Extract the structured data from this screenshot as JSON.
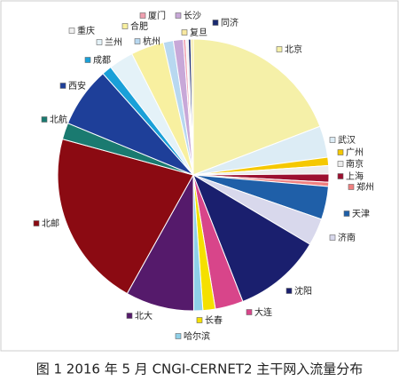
{
  "chart_data": {
    "type": "pie",
    "title": "图 1 2016 年 5 月 CNGI-CERNET2 主干网入流量分布",
    "categories": [
      "北京",
      "武汉",
      "广州",
      "南京",
      "上海",
      "郑州",
      "天津",
      "济南",
      "沈阳",
      "大连",
      "长春",
      "哈尔滨",
      "北大",
      "北邮",
      "北航",
      "西安",
      "成都",
      "兰州",
      "合肥",
      "杭州",
      "长沙",
      "厦门",
      "重庆",
      "同济",
      "复旦"
    ],
    "values": [
      19.5,
      3.8,
      1,
      1,
      1,
      0.5,
      4,
      3.3,
      10.7,
      3.4,
      1.5,
      1.1,
      8.3,
      21.5,
      2,
      7.3,
      1.2,
      3,
      4,
      1.2,
      1.2,
      0.3,
      0.3,
      0.3,
      0.3
    ],
    "colors": [
      "#f5f0a8",
      "#dcecf5",
      "#f5c800",
      "#ececec",
      "#9c1030",
      "#f08080",
      "#1f5fa8",
      "#d8d8ec",
      "#1a1f6e",
      "#d8458a",
      "#f5e000",
      "#8fd0e8",
      "#551a6b",
      "#8b0a12",
      "#1a7a70",
      "#1e3f99",
      "#1aa0d8",
      "#e4f2f8",
      "#f8f0a0",
      "#b8d8f0",
      "#c8a8d8",
      "#f0a0b0",
      "#f0f0f0",
      "#1a2a70",
      "#f8e8a0"
    ]
  }
}
